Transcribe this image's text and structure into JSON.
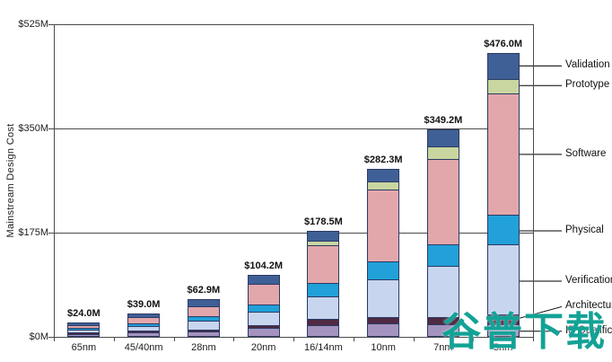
{
  "watermark": "谷普下载",
  "chart_data": {
    "type": "bar",
    "stacked": true,
    "title": "",
    "xlabel": "",
    "ylabel": "Mainstream Design Cost",
    "ylim": [
      0,
      525
    ],
    "grid": true,
    "legend_position": "right",
    "yticks": [
      {
        "value": 525,
        "label": "$525M"
      },
      {
        "value": 350,
        "label": "$350M"
      },
      {
        "value": 175,
        "label": "$175M"
      },
      {
        "value": 0,
        "label": "$0M"
      }
    ],
    "categories": [
      "65nm",
      "45/40nm",
      "28nm",
      "20nm",
      "16/14nm",
      "10nm",
      "7nm",
      "5nm"
    ],
    "totals": [
      "$24.0M",
      "$39.0M",
      "$62.9M",
      "$104.2M",
      "$178.5M",
      "$282.3M",
      "$349.2M",
      "$476.0M"
    ],
    "series": [
      {
        "name": "IP Qualification",
        "color": "#a493bf",
        "values": [
          4,
          6,
          6.9,
          13,
          18,
          20,
          19,
          19
        ]
      },
      {
        "name": "Architecture",
        "color": "#4f2a43",
        "values": [
          2,
          3,
          3,
          4,
          9,
          10,
          10.2,
          15
        ]
      },
      {
        "name": "Verification",
        "color": "#c7d5ee",
        "values": [
          5,
          8,
          15,
          24,
          39,
          65,
          88,
          119
        ]
      },
      {
        "name": "Physical",
        "color": "#22a0d8",
        "values": [
          2,
          3,
          7,
          11,
          23,
          30,
          36,
          50
        ]
      },
      {
        "name": "Software",
        "color": "#e2a7ab",
        "values": [
          7,
          13,
          19,
          37,
          66.5,
          123.3,
          147,
          207
        ]
      },
      {
        "name": "Prototype",
        "color": "#c9d6a0",
        "values": [
          0,
          0,
          0,
          0,
          6,
          13,
          20,
          24
        ]
      },
      {
        "name": "Validation",
        "color": "#3f6096",
        "values": [
          4,
          6,
          12,
          15.2,
          17,
          21,
          29,
          42
        ]
      }
    ],
    "legend": [
      "Validation",
      "Prototype",
      "Software",
      "Physical",
      "Verification",
      "Architecture",
      "IP Qualification"
    ]
  }
}
